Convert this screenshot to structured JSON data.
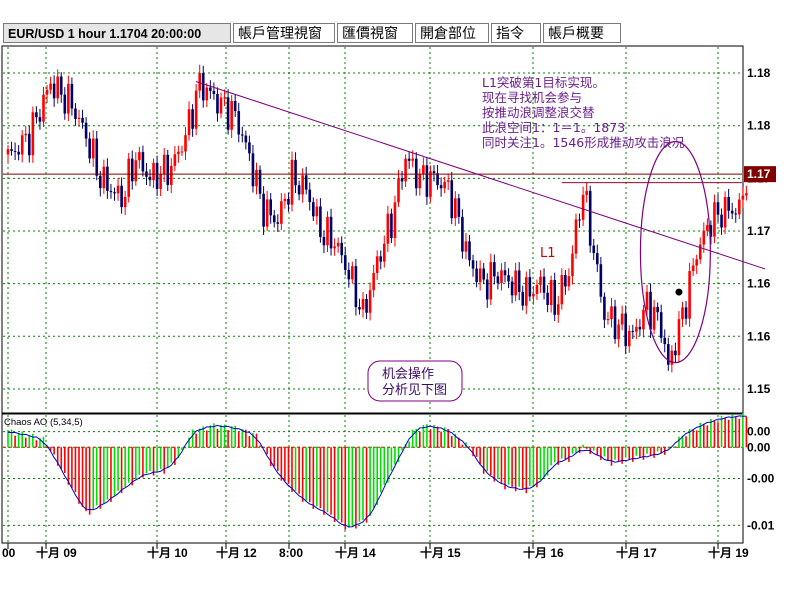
{
  "tabs": [
    {
      "label": "EUR/USD 1 hour 1.1704 20:00:00",
      "active": true
    },
    {
      "label": "帳戶管理視窗",
      "active": false
    },
    {
      "label": "匯價視窗",
      "active": false
    },
    {
      "label": "開倉部位",
      "active": false
    },
    {
      "label": "指令",
      "active": false
    },
    {
      "label": "帳戶概要",
      "active": false
    }
  ],
  "annotations": {
    "notes": [
      "L1突破第1目标实现。",
      "现在寻找机会参与",
      "按推动浪调整浪交替",
      "此浪空间1：1＝1。1873",
      "同时关注1。1546形成推动攻击浪况"
    ],
    "l1_label": "L1",
    "box_lines": [
      "机会操作",
      "分析见下图"
    ]
  },
  "colors": {
    "up": "#ff0000",
    "down": "#000066",
    "ao_up": "#00e000",
    "ao_down": "#ff0000",
    "annotation": "#800080",
    "grid": "#008000",
    "price_line": "#800000",
    "price_tag_bg": "#800000",
    "price_tag_text": "#ffffff"
  },
  "chart_data": [
    {
      "type": "candlestick",
      "symbol": "EUR/USD",
      "timeframe": "1 hour",
      "last_price_label": "1.17",
      "ylim": [
        1.148,
        1.182
      ],
      "y_ticks": [
        {
          "value": 1.15,
          "label": "1.15"
        },
        {
          "value": 1.155,
          "label": "1.16"
        },
        {
          "value": 1.16,
          "label": "1.16"
        },
        {
          "value": 1.165,
          "label": "1.17"
        },
        {
          "value": 1.17,
          "label": "1.17"
        },
        {
          "value": 1.175,
          "label": "1.18"
        },
        {
          "value": 1.18,
          "label": "1.18"
        }
      ],
      "x_ticks": [
        "00",
        "十月 09",
        "十月 10",
        "十月 12",
        "8:00",
        "十月 14",
        "十月 15",
        "十月 16",
        "十月 17",
        "十月 19"
      ],
      "horizontal_line": 1.1704,
      "l1_line": 1.1696,
      "anchors": [
        [
          0,
          1.172
        ],
        [
          6,
          1.174
        ],
        [
          12,
          1.179
        ],
        [
          18,
          1.177
        ],
        [
          22,
          1.174
        ],
        [
          26,
          1.17
        ],
        [
          32,
          1.168
        ],
        [
          36,
          1.172
        ],
        [
          40,
          1.17
        ],
        [
          46,
          1.171
        ],
        [
          50,
          1.174
        ],
        [
          54,
          1.179
        ],
        [
          60,
          1.177
        ],
        [
          64,
          1.176
        ],
        [
          68,
          1.172
        ],
        [
          72,
          1.167
        ],
        [
          76,
          1.166
        ],
        [
          80,
          1.17
        ],
        [
          84,
          1.169
        ],
        [
          88,
          1.165
        ],
        [
          92,
          1.164
        ],
        [
          96,
          1.161
        ],
        [
          100,
          1.157
        ],
        [
          104,
          1.162
        ],
        [
          108,
          1.166
        ],
        [
          112,
          1.172
        ],
        [
          116,
          1.17
        ],
        [
          120,
          1.17
        ],
        [
          124,
          1.169
        ],
        [
          126,
          1.167
        ],
        [
          130,
          1.162
        ],
        [
          134,
          1.16
        ],
        [
          138,
          1.161
        ],
        [
          142,
          1.16
        ],
        [
          146,
          1.159
        ],
        [
          150,
          1.16
        ],
        [
          154,
          1.158
        ],
        [
          158,
          1.161
        ],
        [
          162,
          1.169
        ],
        [
          166,
          1.161
        ],
        [
          168,
          1.157
        ],
        [
          172,
          1.156
        ],
        [
          176,
          1.155
        ],
        [
          180,
          1.158
        ],
        [
          184,
          1.156
        ],
        [
          186,
          1.152
        ],
        [
          190,
          1.157
        ],
        [
          194,
          1.163
        ],
        [
          198,
          1.166
        ],
        [
          202,
          1.167
        ],
        [
          206,
          1.167
        ],
        [
          208,
          1.17
        ]
      ],
      "trendline": {
        "x": [
          0,
          207
        ],
        "y": [
          1.1792,
          1.1614
        ]
      },
      "marker": {
        "x": 189,
        "y": 1.1592
      },
      "ellipse": {
        "x": 188,
        "y": 1.163,
        "rx": 9,
        "ry": 0.0105
      }
    },
    {
      "type": "bar",
      "name": "Chaos AO (5,34,5)",
      "ylim": [
        -0.012,
        0.004
      ],
      "y_ticks": [
        {
          "value": 0.002,
          "label": "0.00"
        },
        {
          "value": 0.0,
          "label": "0.00"
        },
        {
          "value": -0.004,
          "label": "-0.00"
        },
        {
          "value": -0.01,
          "label": "-0.01"
        }
      ],
      "anchors": [
        [
          0,
          0.002
        ],
        [
          6,
          0.0015
        ],
        [
          10,
          0.001
        ],
        [
          14,
          -0.002
        ],
        [
          22,
          -0.0085
        ],
        [
          28,
          -0.007
        ],
        [
          32,
          -0.0055
        ],
        [
          38,
          -0.0035
        ],
        [
          44,
          -0.003
        ],
        [
          48,
          -0.0015
        ],
        [
          52,
          0.002
        ],
        [
          58,
          0.0028
        ],
        [
          64,
          0.0025
        ],
        [
          70,
          0.0015
        ],
        [
          74,
          -0.002
        ],
        [
          78,
          -0.0045
        ],
        [
          84,
          -0.007
        ],
        [
          90,
          -0.0085
        ],
        [
          96,
          -0.0105
        ],
        [
          102,
          -0.009
        ],
        [
          106,
          -0.005
        ],
        [
          110,
          -0.0015
        ],
        [
          114,
          0.002
        ],
        [
          118,
          0.0028
        ],
        [
          124,
          0.0022
        ],
        [
          130,
          0.0
        ],
        [
          134,
          -0.003
        ],
        [
          140,
          -0.005
        ],
        [
          146,
          -0.0055
        ],
        [
          150,
          -0.0045
        ],
        [
          154,
          -0.002
        ],
        [
          158,
          -0.0015
        ],
        [
          162,
          0.0
        ],
        [
          166,
          -0.001
        ],
        [
          170,
          -0.002
        ],
        [
          176,
          -0.0015
        ],
        [
          182,
          -0.001
        ],
        [
          186,
          -0.0005
        ],
        [
          190,
          0.0015
        ],
        [
          196,
          0.003
        ],
        [
          202,
          0.0038
        ],
        [
          207,
          0.004
        ]
      ]
    }
  ]
}
